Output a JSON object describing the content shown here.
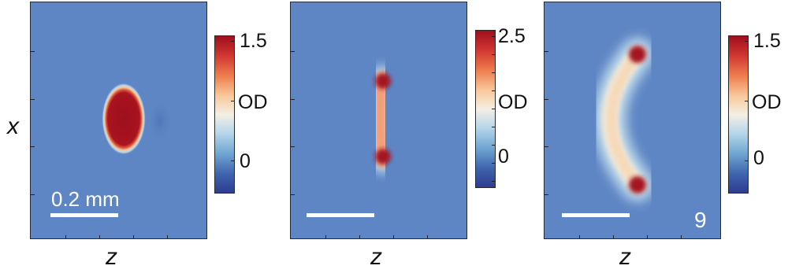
{
  "axis_labels": {
    "x_label": "x",
    "z_label": "z"
  },
  "panels": [
    {
      "colorbar": {
        "max": "1.5",
        "mid": "OD",
        "min": "0"
      },
      "scale_label": "0.2 mm",
      "panel_number": ""
    },
    {
      "colorbar": {
        "max": "2.5",
        "mid": "OD",
        "min": "0"
      },
      "scale_label": "",
      "panel_number": ""
    },
    {
      "colorbar": {
        "max": "1.5",
        "mid": "OD",
        "min": "0"
      },
      "scale_label": "",
      "panel_number": "9"
    }
  ],
  "colormap": "red-white-blue diverging (OD)",
  "colors": {
    "background": "#5e86c4",
    "high": "#9e0f1d",
    "low": "#2e3c8f"
  }
}
